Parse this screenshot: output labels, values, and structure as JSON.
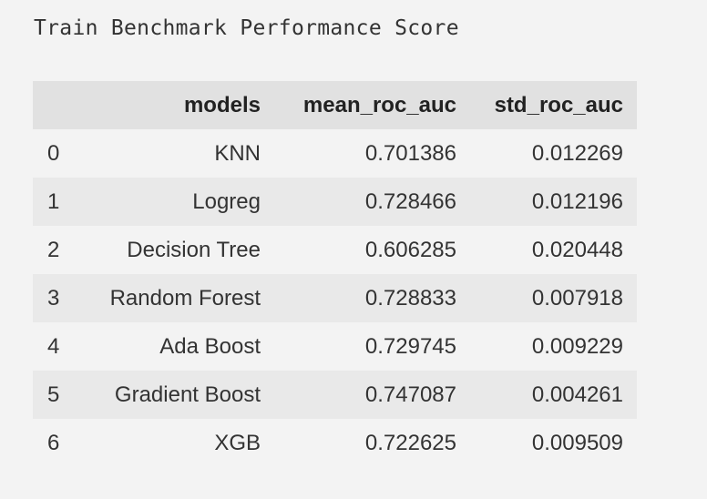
{
  "output": {
    "print_text": "Train Benchmark Performance Score"
  },
  "table": {
    "columns": [
      "",
      "models",
      "mean_roc_auc",
      "std_roc_auc"
    ],
    "rows": [
      {
        "index": "0",
        "models": "KNN",
        "mean_roc_auc": "0.701386",
        "std_roc_auc": "0.012269"
      },
      {
        "index": "1",
        "models": "Logreg",
        "mean_roc_auc": "0.728466",
        "std_roc_auc": "0.012196"
      },
      {
        "index": "2",
        "models": "Decision Tree",
        "mean_roc_auc": "0.606285",
        "std_roc_auc": "0.020448"
      },
      {
        "index": "3",
        "models": "Random Forest",
        "mean_roc_auc": "0.728833",
        "std_roc_auc": "0.007918"
      },
      {
        "index": "4",
        "models": "Ada Boost",
        "mean_roc_auc": "0.729745",
        "std_roc_auc": "0.009229"
      },
      {
        "index": "5",
        "models": "Gradient Boost",
        "mean_roc_auc": "0.747087",
        "std_roc_auc": "0.004261"
      },
      {
        "index": "6",
        "models": "XGB",
        "mean_roc_auc": "0.722625",
        "std_roc_auc": "0.009509"
      }
    ]
  },
  "colors": {
    "background": "#f3f3f3",
    "header_background": "#e1e1e1",
    "stripe_background": "#e9e9e9",
    "text": "#333333"
  }
}
